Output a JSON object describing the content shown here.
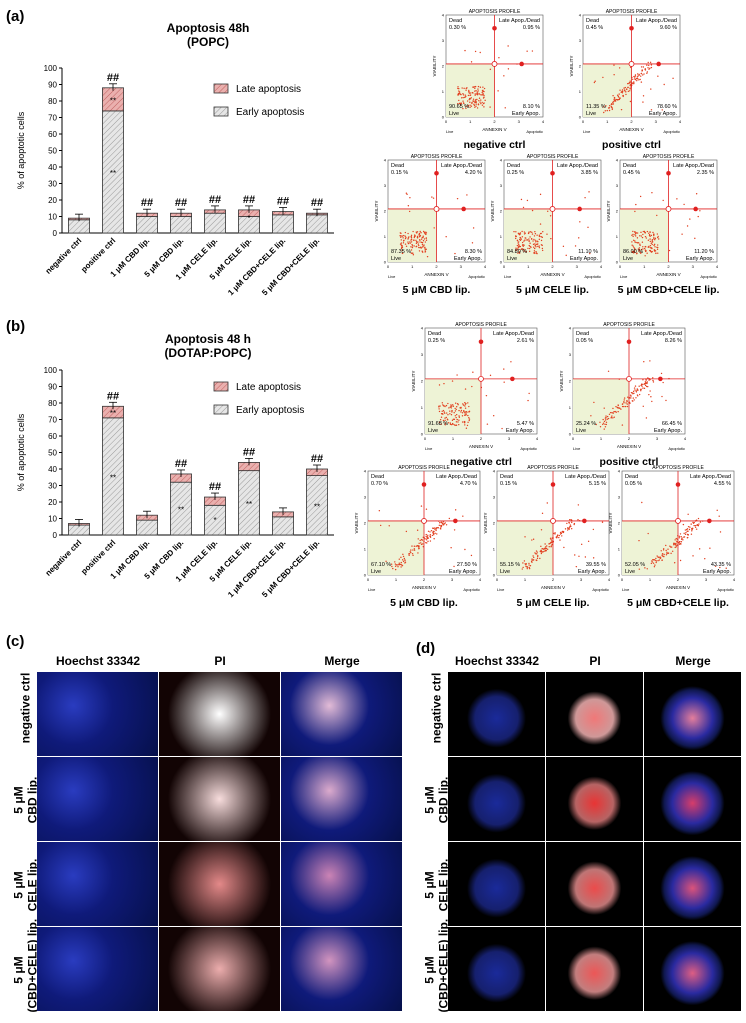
{
  "panels": {
    "a": "(a)",
    "b": "(b)",
    "c": "(c)",
    "d": "(d)"
  },
  "chart_data": [
    {
      "type": "bar",
      "panel": "a",
      "title": "Apoptosis 48h",
      "subtitle": "(POPC)",
      "ylabel": "% of apoptotic cells",
      "ylim": [
        0,
        100
      ],
      "yticks": [
        0,
        10,
        20,
        30,
        40,
        50,
        60,
        70,
        80,
        90,
        100
      ],
      "categories": [
        "negative ctrl",
        "positive ctrl",
        "1 μM CBD lip.",
        "5 μM CBD lip.",
        "1 μM CELE lip.",
        "5 μM CELE lip.",
        "1 μM CBD+CELE lip.",
        "5 μM CBD+CELE lip."
      ],
      "stacked": true,
      "series": [
        {
          "name": "Early apoptosis",
          "color": "#d9d9d9",
          "values": [
            8,
            74,
            10,
            10,
            12,
            10,
            11,
            11
          ]
        },
        {
          "name": "Late apoptosis",
          "color": "#e8a0a0",
          "values": [
            1,
            14,
            2,
            2,
            2,
            4,
            2,
            1
          ]
        }
      ],
      "hash_marks": [
        "",
        "##",
        "##",
        "##",
        "##",
        "##",
        "##",
        "##"
      ],
      "early_stars": [
        "",
        "**",
        "",
        "",
        "",
        "*",
        "",
        ""
      ],
      "late_stars": [
        "",
        "**",
        "",
        "",
        "",
        "",
        "",
        ""
      ]
    },
    {
      "type": "bar",
      "panel": "b",
      "title": "Apoptosis 48 h",
      "subtitle": "(DOTAP:POPC)",
      "ylabel": "% of apoptotic cells",
      "ylim": [
        0,
        100
      ],
      "yticks": [
        0,
        10,
        20,
        30,
        40,
        50,
        60,
        70,
        80,
        90,
        100
      ],
      "categories": [
        "negative ctrl",
        "positive ctrl",
        "1 μM CBD lip.",
        "5 μM CBD lip.",
        "1 μM CELE lip.",
        "5 μM CELE lip.",
        "1 μM CBD+CELE lip.",
        "5 μM CBD+CELE lip."
      ],
      "stacked": true,
      "series": [
        {
          "name": "Early apoptosis",
          "color": "#d9d9d9",
          "values": [
            6,
            71,
            9,
            32,
            18,
            39,
            11,
            36
          ]
        },
        {
          "name": "Late apoptosis",
          "color": "#e8a0a0",
          "values": [
            1,
            7,
            3,
            5,
            5,
            5,
            3,
            4
          ]
        }
      ],
      "hash_marks": [
        "",
        "##",
        "",
        "##",
        "##",
        "##",
        "",
        "##"
      ],
      "early_stars": [
        "",
        "**",
        "",
        "**",
        "*",
        "**",
        "",
        "**"
      ],
      "late_stars": [
        "",
        "**",
        "",
        "",
        "",
        "",
        "",
        ""
      ]
    }
  ],
  "flow_plots": {
    "title": "APOPTOSIS PROFILE",
    "q_dead": "Dead",
    "q_late": "Late Apop./Dead",
    "q_live": "Live",
    "q_early": "Early Apop.",
    "xlabel": "ANNEXIN V",
    "ylabel": "VIABILITY",
    "x_left": "Live",
    "x_right": "Apoptotic",
    "a": [
      {
        "name": "negative ctrl",
        "dead": "0.30 %",
        "late": "0.95 %",
        "live": "90.65 %",
        "early": "8.10 %"
      },
      {
        "name": "positive ctrl",
        "dead": "0.45 %",
        "late": "9.60 %",
        "live": "11.35 %",
        "early": "78.60 %"
      },
      {
        "name": "5 μM CBD lip.",
        "dead": "0.15 %",
        "late": "4.20 %",
        "live": "87.35 %",
        "early": "8.30 %"
      },
      {
        "name": "5 μM CELE lip.",
        "dead": "0.25 %",
        "late": "3.85 %",
        "live": "84.80 %",
        "early": "11.10 %"
      },
      {
        "name": "5 μM CBD+CELE lip.",
        "dead": "0.45 %",
        "late": "2.35 %",
        "live": "86.00 %",
        "early": "11.20 %"
      }
    ],
    "b": [
      {
        "name": "negative ctrl",
        "dead": "0.25 %",
        "late": "2.61 %",
        "live": "91.68 %",
        "early": "5.47 %"
      },
      {
        "name": "positive ctrl",
        "dead": "0.05 %",
        "late": "8.26 %",
        "live": "25.24 %",
        "early": "66.45 %"
      },
      {
        "name": "5 μM CBD lip.",
        "dead": "0.70 %",
        "late": "4.70 %",
        "live": "67.10 %",
        "early": "27.50 %"
      },
      {
        "name": "5 μM CELE lip.",
        "dead": "0.15 %",
        "late": "5.15 %",
        "live": "55.15 %",
        "early": "39.55 %"
      },
      {
        "name": "5 μM CBD+CELE lip.",
        "dead": "0.05 %",
        "late": "4.55 %",
        "live": "52.05 %",
        "early": "43.35 %"
      }
    ]
  },
  "micro_c": {
    "headers": [
      "Hoechst 33342",
      "PI",
      "Merge"
    ],
    "rows": [
      "negative ctrl",
      "5 μM\nCBD lip.",
      "5 μM\nCELE lip.",
      "5 μM\n(CBD+CELE) lip."
    ]
  },
  "micro_d": {
    "headers": [
      "Hoechst 33342",
      "PI",
      "Merge"
    ],
    "rows": [
      "negative ctrl",
      "5 μM\nCBD lip.",
      "5 μM\nCELE lip.",
      "5 μM\n(CBD+CELE) lip."
    ]
  },
  "colors": {
    "early": "#d9d9d9",
    "late": "#e8a0a0",
    "flow_accent": "#e02020",
    "flow_bg": "#eef3d6",
    "hoechst": "#1a2a9a",
    "pi": "#c01010"
  }
}
